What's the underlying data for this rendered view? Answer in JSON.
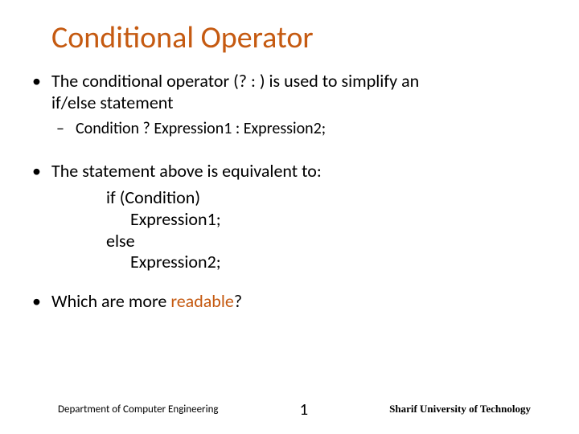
{
  "colors": {
    "title": "#c55a11",
    "body": "#000000",
    "accent": "#c55a11",
    "background": "#ffffff"
  },
  "title": "Conditional Operator",
  "bullets": {
    "b1_line1": "The conditional operator (? : ) is used to simplify an",
    "b1_line2": "if/else statement",
    "b1_sub": "Condition ? Expression1 : Expression2;",
    "b2": "The statement above is equivalent to:",
    "code": {
      "l1": "if (Condition)",
      "l2": "Expression1;",
      "l3": "else",
      "l4": "Expression2;"
    },
    "b3_pre": "Which are more ",
    "b3_accent": "readable",
    "b3_post": "?"
  },
  "footer": {
    "dept": "Department of Computer Engineering",
    "page": "1",
    "univ": "Sharif University of Technology"
  }
}
